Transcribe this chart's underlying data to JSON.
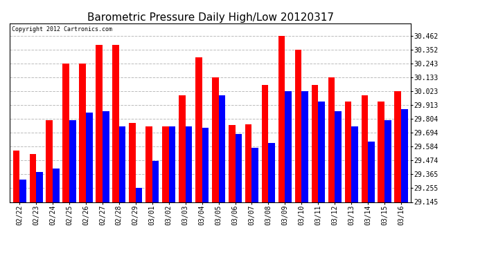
{
  "title": "Barometric Pressure Daily High/Low 20120317",
  "copyright": "Copyright 2012 Cartronics.com",
  "dates": [
    "02/22",
    "02/23",
    "02/24",
    "02/25",
    "02/26",
    "02/27",
    "02/28",
    "02/29",
    "03/01",
    "03/02",
    "03/03",
    "03/04",
    "03/05",
    "03/06",
    "03/07",
    "03/08",
    "03/09",
    "03/10",
    "03/11",
    "03/12",
    "03/13",
    "03/14",
    "03/15",
    "03/16"
  ],
  "highs": [
    29.553,
    29.523,
    29.793,
    30.243,
    30.243,
    30.392,
    30.392,
    29.773,
    29.743,
    29.743,
    29.993,
    30.293,
    30.133,
    29.753,
    29.763,
    30.073,
    30.462,
    30.352,
    30.073,
    30.133,
    29.943,
    29.993,
    29.943,
    30.023
  ],
  "lows": [
    29.323,
    29.383,
    29.413,
    29.793,
    29.853,
    29.863,
    29.743,
    29.255,
    29.473,
    29.743,
    29.743,
    29.733,
    29.993,
    29.683,
    29.573,
    29.613,
    30.023,
    30.023,
    29.943,
    29.863,
    29.743,
    29.623,
    29.793,
    29.883
  ],
  "ylim_min": 29.145,
  "ylim_max": 30.562,
  "yticks": [
    29.145,
    29.255,
    29.365,
    29.474,
    29.584,
    29.694,
    29.804,
    29.913,
    30.023,
    30.133,
    30.243,
    30.352,
    30.462
  ],
  "ytick_labels": [
    "29.145",
    "29.255",
    "29.365",
    "29.474",
    "29.584",
    "29.694",
    "29.804",
    "29.913",
    "30.023",
    "30.133",
    "30.243",
    "30.352",
    "30.462"
  ],
  "high_color": "#ff0000",
  "low_color": "#0000ff",
  "background_color": "#ffffff",
  "grid_color": "#bbbbbb",
  "title_fontsize": 11,
  "copyright_fontsize": 6,
  "tick_fontsize": 7,
  "bar_width": 0.4
}
